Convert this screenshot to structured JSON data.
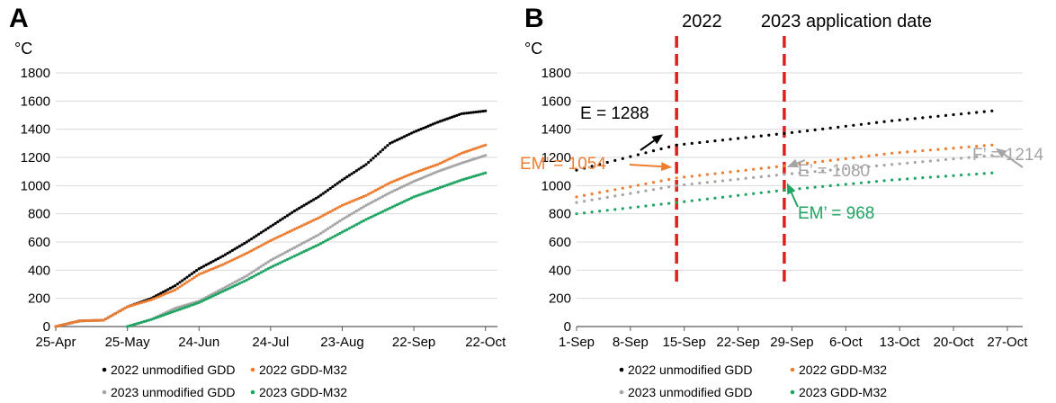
{
  "colors": {
    "s2022_unmodified": "#000000",
    "s2022_m32": "#ED7D31",
    "s2023_unmodified": "#A5A5A5",
    "s2023_m32": "#1FA463",
    "application_line": "#E01E1E",
    "grid": "#D9D9D9"
  },
  "chart_data": [
    {
      "panel": "A",
      "type": "scatter",
      "ylabel": "°C",
      "ylim": [
        0,
        1800
      ],
      "yticks": [
        "0",
        "200",
        "400",
        "600",
        "800",
        "1000",
        "1200",
        "1400",
        "1600",
        "1800"
      ],
      "xticks": [
        "25-Apr",
        "25-May",
        "24-Jun",
        "24-Jul",
        "23-Aug",
        "22-Sep",
        "22-Oct"
      ],
      "grid": "horizontal",
      "legend_position": "bottom",
      "series": [
        {
          "name": "2022 unmodified GDD",
          "color_key": "s2022_unmodified",
          "x": [
            "25-Apr",
            "5-May",
            "15-May",
            "25-May",
            "4-Jun",
            "14-Jun",
            "24-Jun",
            "4-Jul",
            "14-Jul",
            "24-Jul",
            "3-Aug",
            "13-Aug",
            "23-Aug",
            "2-Sep",
            "12-Sep",
            "22-Sep",
            "2-Oct",
            "12-Oct",
            "22-Oct"
          ],
          "y": [
            0,
            40,
            45,
            140,
            200,
            290,
            410,
            500,
            600,
            710,
            820,
            920,
            1040,
            1150,
            1300,
            1380,
            1450,
            1510,
            1530
          ]
        },
        {
          "name": "2022 GDD-M32",
          "color_key": "s2022_m32",
          "x": [
            "25-Apr",
            "5-May",
            "15-May",
            "25-May",
            "4-Jun",
            "14-Jun",
            "24-Jun",
            "4-Jul",
            "14-Jul",
            "24-Jul",
            "3-Aug",
            "13-Aug",
            "23-Aug",
            "2-Sep",
            "12-Sep",
            "22-Sep",
            "2-Oct",
            "12-Oct",
            "22-Oct"
          ],
          "y": [
            0,
            40,
            45,
            140,
            190,
            260,
            370,
            440,
            520,
            610,
            690,
            770,
            860,
            930,
            1020,
            1090,
            1150,
            1230,
            1288
          ]
        },
        {
          "name": "2023 unmodified GDD",
          "color_key": "s2023_unmodified",
          "x": [
            "25-May",
            "4-Jun",
            "14-Jun",
            "24-Jun",
            "4-Jul",
            "14-Jul",
            "24-Jul",
            "3-Aug",
            "13-Aug",
            "23-Aug",
            "2-Sep",
            "12-Sep",
            "22-Sep",
            "2-Oct",
            "12-Oct",
            "22-Oct"
          ],
          "y": [
            0,
            50,
            130,
            180,
            270,
            360,
            470,
            560,
            650,
            760,
            860,
            950,
            1030,
            1100,
            1160,
            1214
          ]
        },
        {
          "name": "2023 GDD-M32",
          "color_key": "s2023_m32",
          "x": [
            "25-May",
            "4-Jun",
            "14-Jun",
            "24-Jun",
            "4-Jul",
            "14-Jul",
            "24-Jul",
            "3-Aug",
            "13-Aug",
            "23-Aug",
            "2-Sep",
            "12-Sep",
            "22-Sep",
            "2-Oct",
            "12-Oct",
            "22-Oct"
          ],
          "y": [
            0,
            50,
            110,
            170,
            250,
            330,
            420,
            500,
            580,
            670,
            760,
            840,
            920,
            980,
            1040,
            1090
          ]
        }
      ]
    },
    {
      "panel": "B",
      "type": "scatter",
      "ylabel": "°C",
      "ylim": [
        0,
        1800
      ],
      "yticks": [
        "0",
        "200",
        "400",
        "600",
        "800",
        "1000",
        "1200",
        "1400",
        "1600",
        "1800"
      ],
      "xticks": [
        "1-Sep",
        "8-Sep",
        "15-Sep",
        "22-Sep",
        "29-Sep",
        "6-Oct",
        "13-Oct",
        "20-Oct",
        "27-Oct"
      ],
      "grid": "horizontal",
      "legend_position": "bottom",
      "vertical_lines": [
        {
          "label": "2022",
          "x": "14-Sep"
        },
        {
          "label": "2023 application date",
          "x": "28-Sep"
        }
      ],
      "annotations": [
        {
          "text": "E = 1288",
          "color_key": "s2022_unmodified",
          "x": "14-Sep",
          "y": 1288
        },
        {
          "text": "EM’ = 1054",
          "color_key": "s2022_m32",
          "x": "14-Sep",
          "y": 1054
        },
        {
          "text": "E’ = 1080",
          "color_key": "s2023_unmodified",
          "x": "28-Sep",
          "y": 1080
        },
        {
          "text": "EM’ = 968",
          "color_key": "s2023_m32",
          "x": "28-Sep",
          "y": 968
        },
        {
          "text": "F’ = 1214",
          "color_key": "s2023_unmodified",
          "x": "25-Oct",
          "y": 1214
        }
      ],
      "series": [
        {
          "name": "2022 unmodified GDD",
          "color_key": "s2022_unmodified",
          "x": [
            "1-Sep",
            "14-Sep",
            "28-Sep",
            "12-Oct",
            "25-Oct"
          ],
          "y": [
            1110,
            1288,
            1370,
            1460,
            1530
          ]
        },
        {
          "name": "2022 GDD-M32",
          "color_key": "s2022_m32",
          "x": [
            "1-Sep",
            "14-Sep",
            "28-Sep",
            "12-Oct",
            "25-Oct"
          ],
          "y": [
            920,
            1054,
            1140,
            1230,
            1288
          ]
        },
        {
          "name": "2023 unmodified GDD",
          "color_key": "s2023_unmodified",
          "x": [
            "1-Sep",
            "14-Sep",
            "28-Sep",
            "12-Oct",
            "25-Oct"
          ],
          "y": [
            880,
            1000,
            1080,
            1150,
            1214
          ]
        },
        {
          "name": "2023 GDD-M32",
          "color_key": "s2023_m32",
          "x": [
            "1-Sep",
            "14-Sep",
            "28-Sep",
            "12-Oct",
            "25-Oct"
          ],
          "y": [
            800,
            880,
            968,
            1040,
            1090
          ]
        }
      ]
    }
  ]
}
